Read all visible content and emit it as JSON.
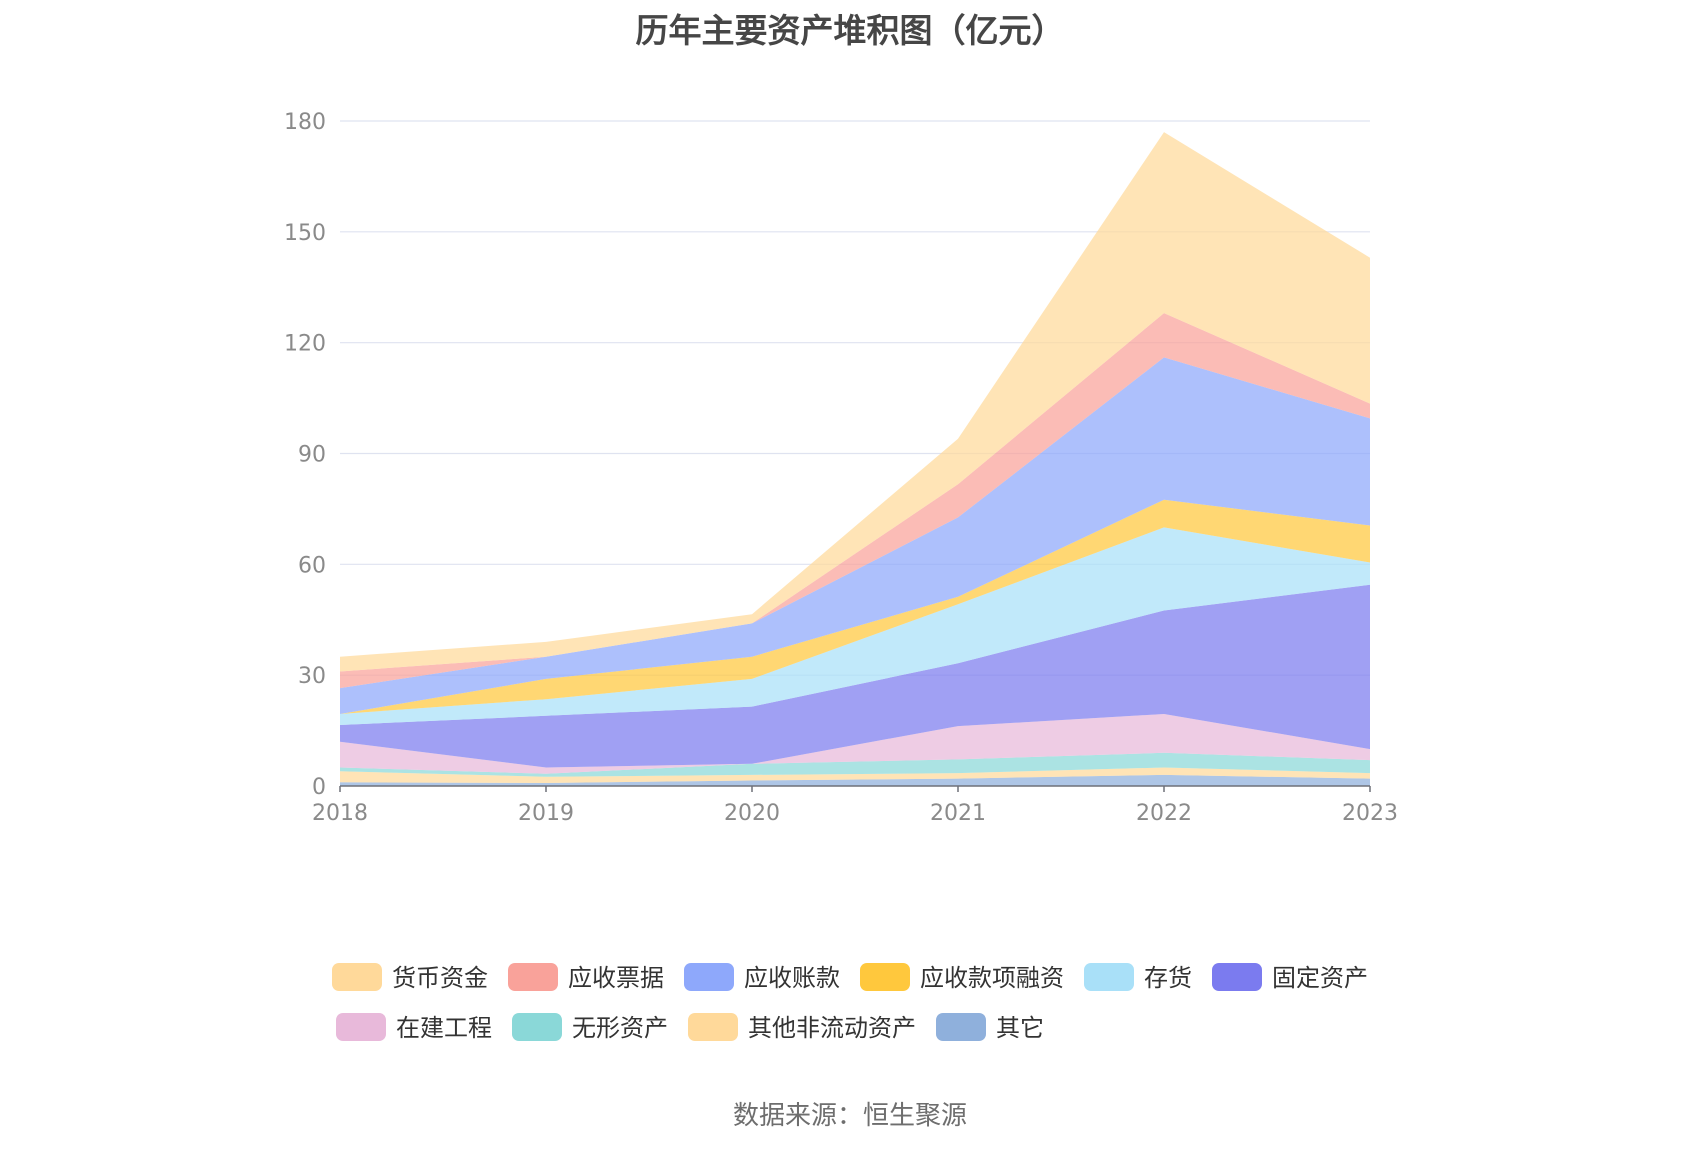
{
  "chart_data": {
    "type": "area",
    "title": "历年主要资产堆积图（亿元）",
    "x": [
      "2018",
      "2019",
      "2020",
      "2021",
      "2022",
      "2023"
    ],
    "ylim": [
      0,
      180
    ],
    "yticks": [
      0,
      30,
      60,
      90,
      120,
      150,
      180
    ],
    "stacked": true,
    "grid": true,
    "legend_position": "bottom",
    "series": [
      {
        "name": "其它",
        "color": "#8fb0dc",
        "values": [
          1.0,
          0.8,
          1.5,
          2.0,
          3.0,
          2.0
        ]
      },
      {
        "name": "其他非流动资产",
        "color": "#ffd99a",
        "values": [
          3.0,
          1.7,
          1.5,
          1.5,
          2.0,
          1.5
        ]
      },
      {
        "name": "无形资产",
        "color": "#8ad8d8",
        "values": [
          1.0,
          0.8,
          3.0,
          3.7,
          4.0,
          3.5
        ]
      },
      {
        "name": "在建工程",
        "color": "#e8b9da",
        "values": [
          7.0,
          1.7,
          0.0,
          9.0,
          10.5,
          3.0
        ]
      },
      {
        "name": "固定资产",
        "color": "#7b7bef",
        "values": [
          4.5,
          14.0,
          15.5,
          17.0,
          28.0,
          44.5
        ]
      },
      {
        "name": "存货",
        "color": "#a9e0f8",
        "values": [
          3.0,
          4.5,
          7.5,
          16.0,
          22.5,
          6.0
        ]
      },
      {
        "name": "应收款项融资",
        "color": "#ffc83d",
        "values": [
          0.0,
          5.5,
          6.0,
          2.0,
          7.5,
          10.0
        ]
      },
      {
        "name": "应收账款",
        "color": "#8ea8fb",
        "values": [
          7.0,
          6.0,
          9.0,
          21.5,
          38.5,
          29.0
        ]
      },
      {
        "name": "应收票据",
        "color": "#f9a29a",
        "values": [
          4.5,
          0.0,
          0.0,
          9.0,
          12.0,
          4.0
        ]
      },
      {
        "name": "货币资金",
        "color": "#ffd99a",
        "values": [
          4.0,
          4.0,
          2.5,
          12.3,
          49.0,
          39.5
        ]
      }
    ],
    "legend_order": [
      "货币资金",
      "应收票据",
      "应收账款",
      "应收款项融资",
      "存货",
      "固定资产",
      "在建工程",
      "无形资产",
      "其他非流动资产",
      "其它"
    ]
  },
  "footer": {
    "source": "数据来源：恒生聚源"
  }
}
